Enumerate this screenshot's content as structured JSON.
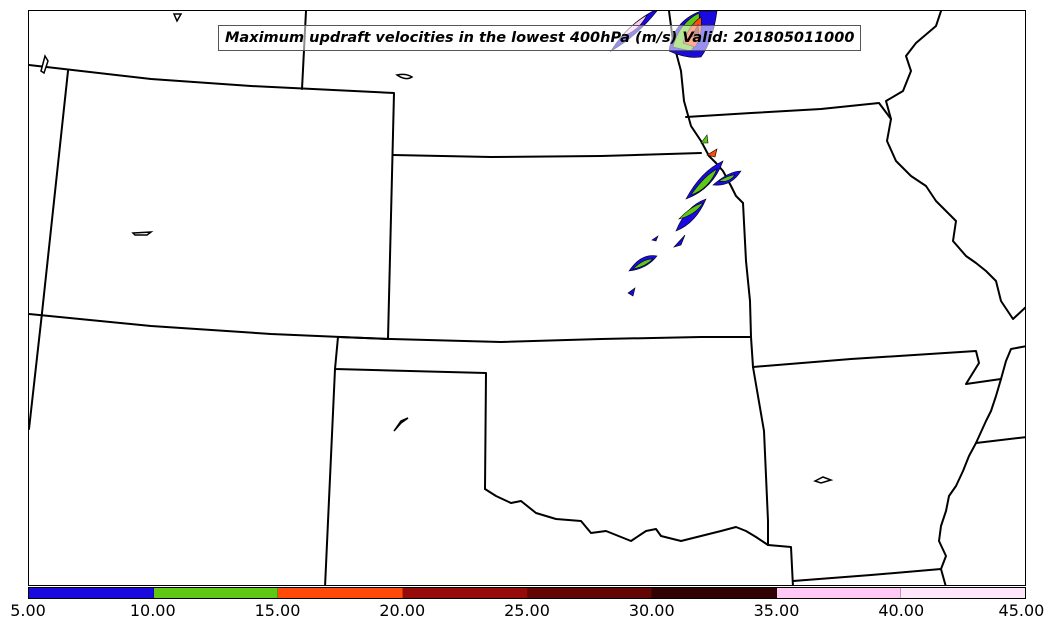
{
  "title": "Maximum updraft velocities in the lowest 400hPa (m/s) Valid: 201805011000",
  "legend": {
    "colors": [
      "#1a0ae0",
      "#5ec814",
      "#ff4a0a",
      "#960a0a",
      "#640505",
      "#320202",
      "#ffc8f5",
      "#ffe6fa"
    ],
    "tick_labels": [
      "5.00",
      "10.00",
      "15.00",
      "20.00",
      "25.00",
      "30.00",
      "35.00",
      "40.00",
      "45.00"
    ]
  },
  "regions": {
    "states": [
      "state-border",
      "state-border",
      "state-border",
      "state-border",
      "state-border",
      "state-border",
      "state-border",
      "state-border",
      "state-border",
      "state-border",
      "state-border",
      "state-border",
      "state-border",
      "state-border"
    ],
    "rivers": [
      "river-missouri",
      "river-mississippi"
    ],
    "lakes": [
      "lake",
      "lake",
      "lake",
      "lake",
      "lake",
      "lake"
    ]
  },
  "cells": [
    "updraft-cell",
    "updraft-cell",
    "updraft-cell",
    "updraft-cell",
    "updraft-cell",
    "updraft-cell",
    "updraft-cell",
    "updraft-cell",
    "updraft-cell",
    "updraft-cell",
    "updraft-cell",
    "updraft-cell",
    "updraft-cell",
    "updraft-cell"
  ]
}
